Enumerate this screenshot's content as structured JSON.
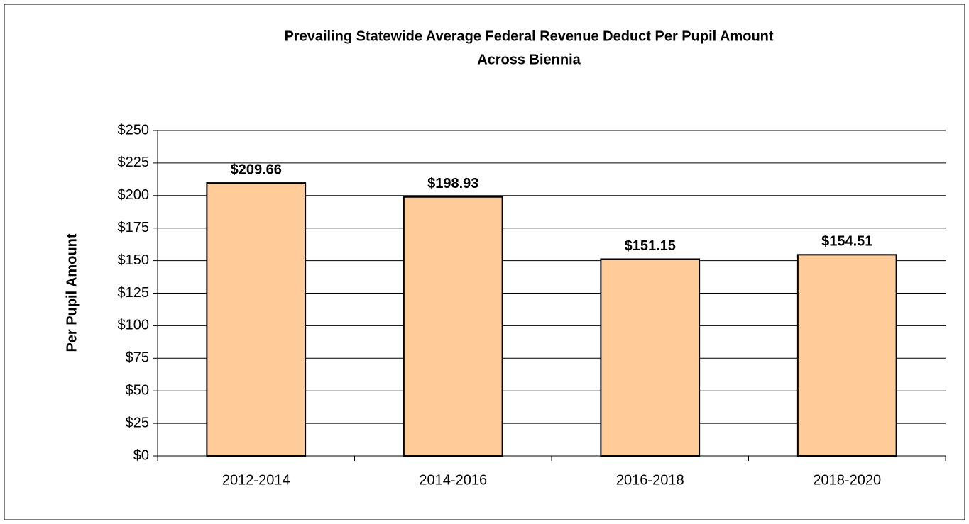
{
  "chart_data": {
    "type": "bar",
    "title": [
      "Prevailing Statewide Average Federal Revenue Deduct Per Pupil Amount",
      "Across Biennia"
    ],
    "y_label": "Per Pupil Amount",
    "categories": [
      "2012-2014",
      "2014-2016",
      "2016-2018",
      "2018-2020"
    ],
    "values": [
      209.66,
      198.93,
      151.15,
      154.51
    ],
    "value_labels": [
      "$209.66",
      "$198.93",
      "$151.15",
      "$154.51"
    ],
    "color": "#ffcc99",
    "ylim": [
      0,
      250
    ],
    "yticks": [
      {
        "value": 0,
        "label": "$0"
      },
      {
        "value": 25,
        "label": "$25"
      },
      {
        "value": 50,
        "label": "$50"
      },
      {
        "value": 75,
        "label": "$75"
      },
      {
        "value": 100,
        "label": "$100"
      },
      {
        "value": 125,
        "label": "$125"
      },
      {
        "value": 150,
        "label": "$150"
      },
      {
        "value": 175,
        "label": "$175"
      },
      {
        "value": 200,
        "label": "$200"
      },
      {
        "value": 225,
        "label": "$225"
      },
      {
        "value": 250,
        "label": "$250"
      }
    ],
    "grid": true
  }
}
